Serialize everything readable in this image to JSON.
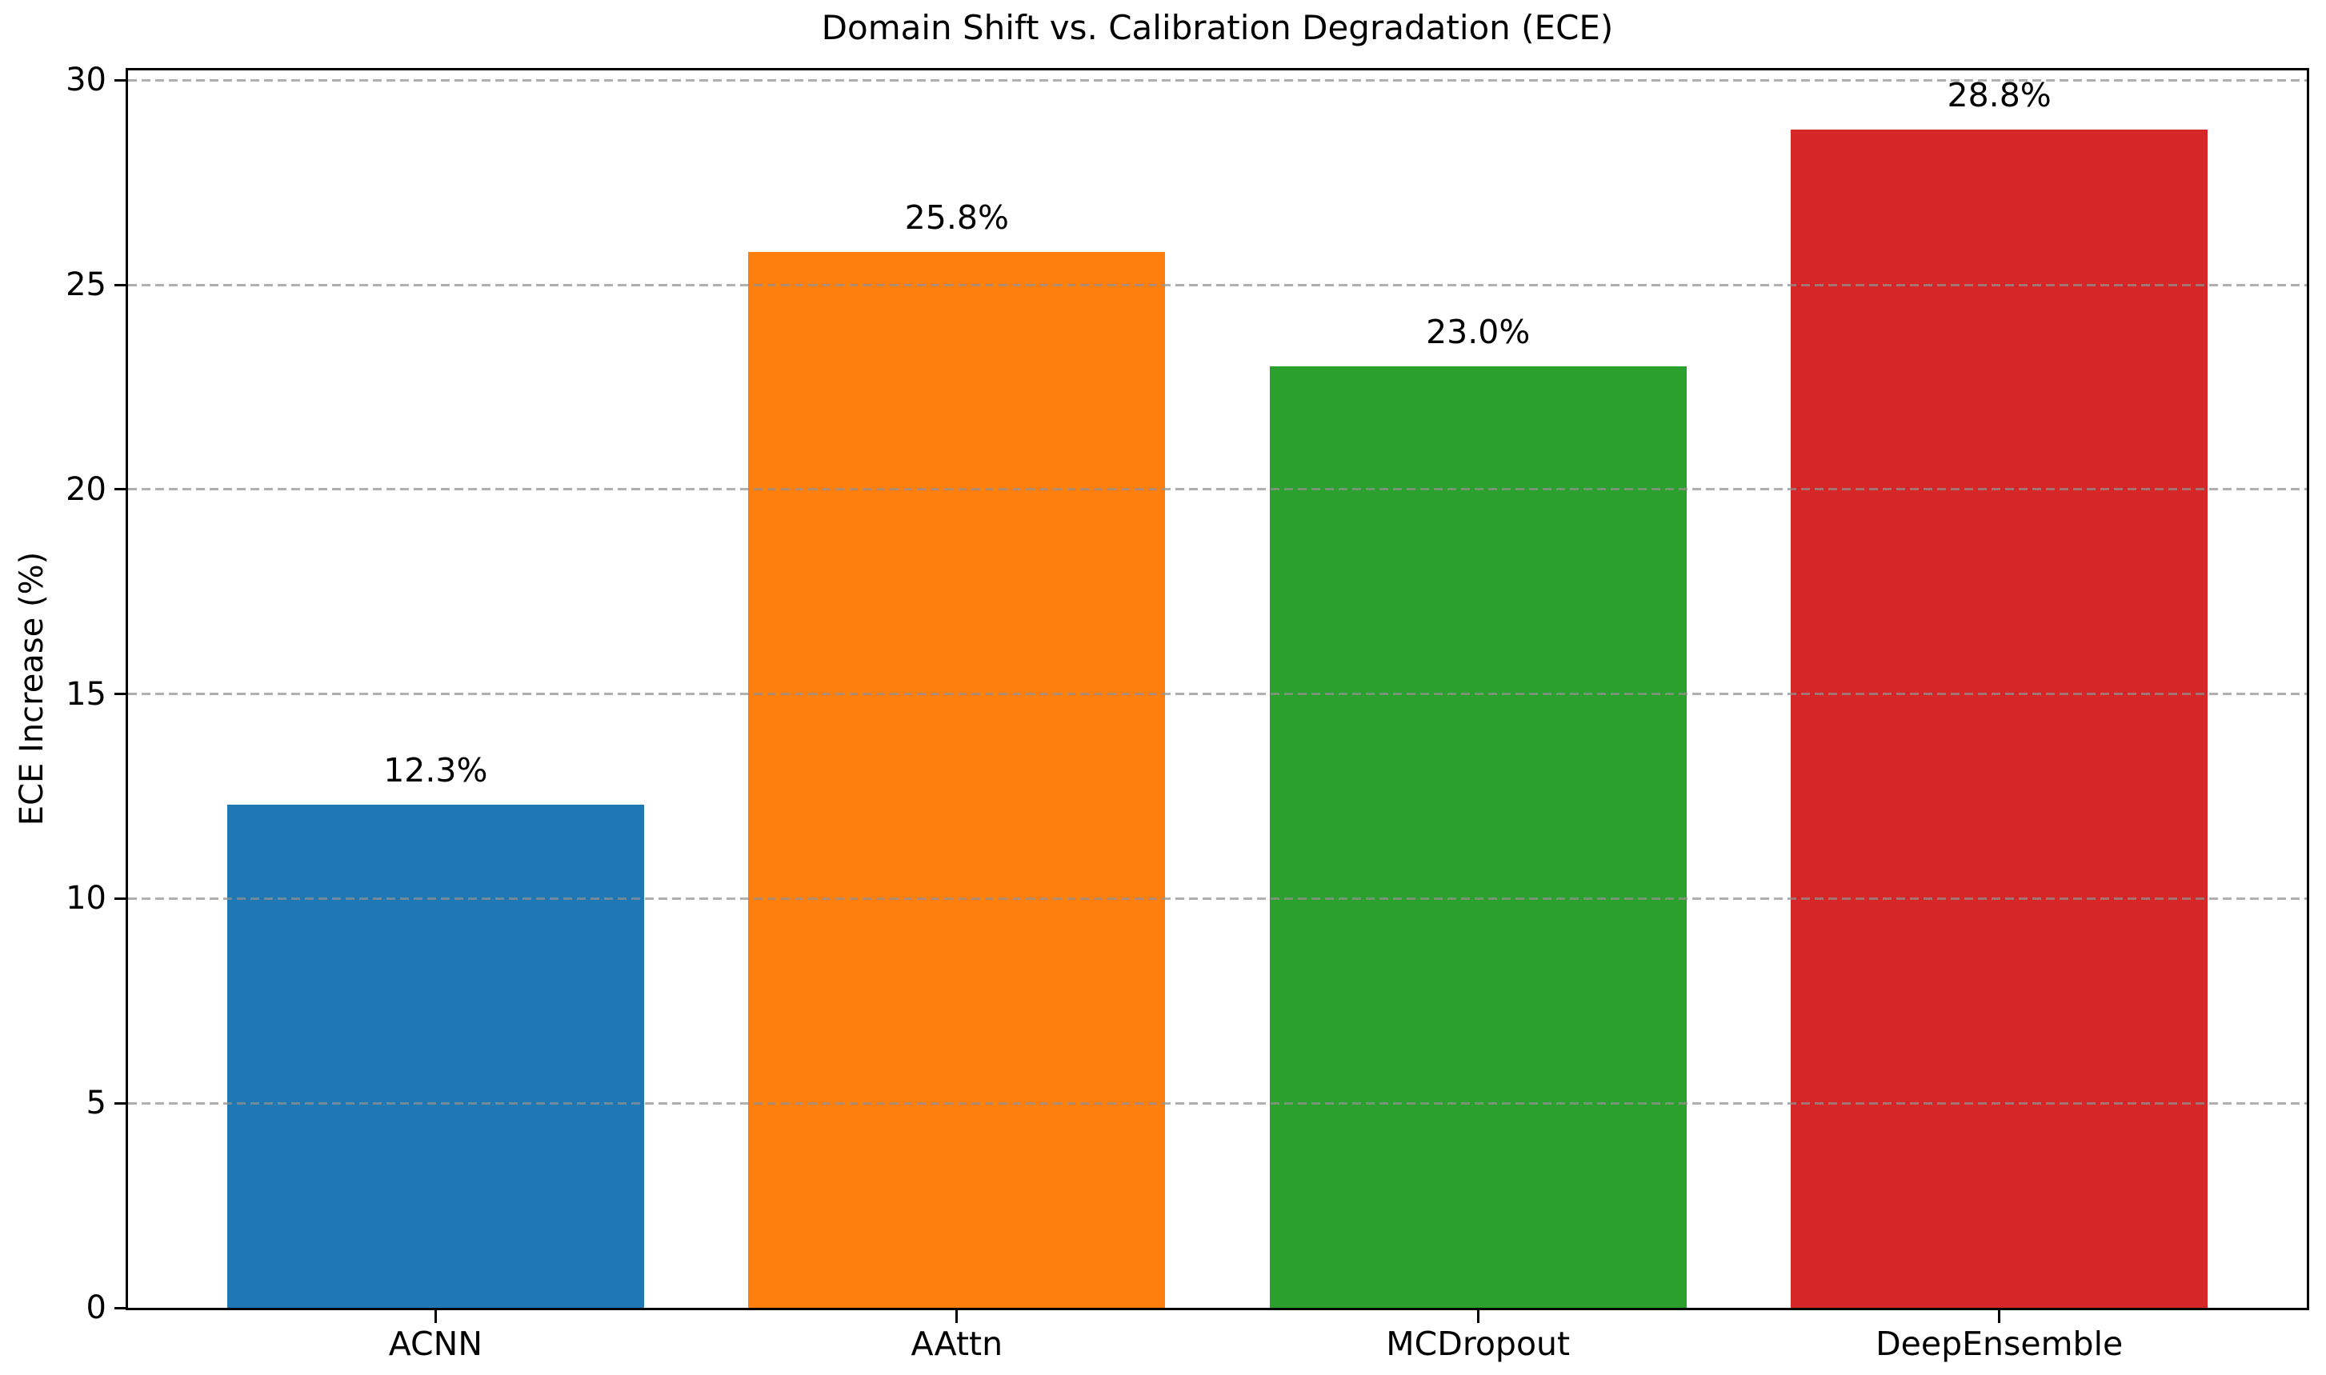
{
  "chart_data": {
    "type": "bar",
    "title": "Domain Shift vs. Calibration Degradation (ECE)",
    "xlabel": "",
    "ylabel": "ECE Increase (%)",
    "categories": [
      "ACNN",
      "AAttn",
      "MCDropout",
      "DeepEnsemble"
    ],
    "values": [
      12.3,
      25.8,
      23.0,
      28.8
    ],
    "bar_labels": [
      "12.3%",
      "25.8%",
      "23.0%",
      "28.8%"
    ],
    "bar_colors": [
      "#1f77b4",
      "#ff7f0e",
      "#2ca02c",
      "#d62728"
    ],
    "ytick_labels": [
      "0",
      "5",
      "10",
      "15",
      "20",
      "25",
      "30"
    ],
    "yticks": [
      0,
      5,
      10,
      15,
      20,
      25,
      30
    ],
    "ylim": [
      0,
      30.24
    ],
    "grid": "y-axis, dashed, gray, drawn over bars",
    "legend_position": "none",
    "background_color": "#ffffff",
    "text_color": "#000000"
  }
}
